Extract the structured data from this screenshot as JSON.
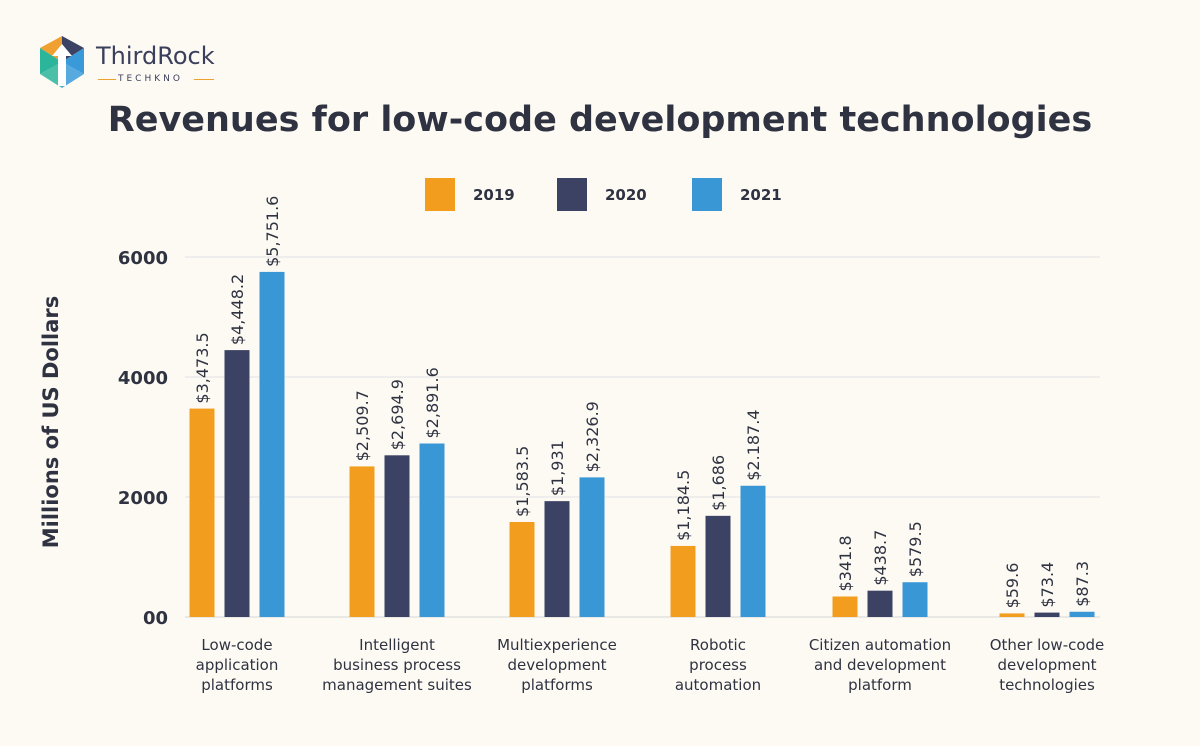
{
  "brand": {
    "name": "ThirdRock",
    "tagline": "TECHKNO",
    "colors": [
      "#f0a030",
      "#3b4263",
      "#3a9ad9",
      "#2bb59a"
    ]
  },
  "chart_data": {
    "type": "bar",
    "title": "Revenues for low-code development technologies",
    "xlabel": "",
    "ylabel": "Millions of US Dollars",
    "ylim": [
      0,
      6000
    ],
    "yticks": [
      {
        "value": 0,
        "label": "00"
      },
      {
        "value": 2000,
        "label": "2000"
      },
      {
        "value": 4000,
        "label": "4000"
      },
      {
        "value": 6000,
        "label": "6000"
      }
    ],
    "grid": true,
    "legend_position": "top-center",
    "categories": [
      "Low-code application platforms",
      "Intelligent business process management suites",
      "Multiexperience development platforms",
      "Robotic process automation",
      "Citizen automation and development platform",
      "Other low-code development technologies"
    ],
    "category_lines": [
      [
        "Low-code",
        "application",
        "platforms"
      ],
      [
        "Intelligent",
        "business process",
        "management suites"
      ],
      [
        "Multiexperience",
        "development",
        "platforms"
      ],
      [
        "Robotic",
        "process",
        "automation"
      ],
      [
        "Citizen automation",
        "and development",
        "platform"
      ],
      [
        "Other low-code",
        "development",
        "technologies"
      ]
    ],
    "series": [
      {
        "name": "2019",
        "color": "#f29d1e",
        "values": [
          3473.5,
          2509.7,
          1583.5,
          1184.5,
          341.8,
          59.6
        ],
        "labels": [
          "$3,473.5",
          "$2,509.7",
          "$1,583.5",
          "$1,184.5",
          "$341.8",
          "$59.6"
        ]
      },
      {
        "name": "2020",
        "color": "#3b4263",
        "values": [
          4448.2,
          2694.9,
          1931,
          1686,
          438.7,
          73.4
        ],
        "labels": [
          "$4,448.2",
          "$2,694.9",
          "$1,931",
          "$1,686",
          "$438.7",
          "$73.4"
        ]
      },
      {
        "name": "2021",
        "color": "#3a97d6",
        "values": [
          5751.6,
          2891.6,
          2326.9,
          2187.4,
          579.5,
          87.3
        ],
        "labels": [
          "$5,751.6",
          "$2,891.6",
          "$2,326.9",
          "$2.187.4",
          "$579.5",
          "$87.3"
        ]
      }
    ]
  }
}
